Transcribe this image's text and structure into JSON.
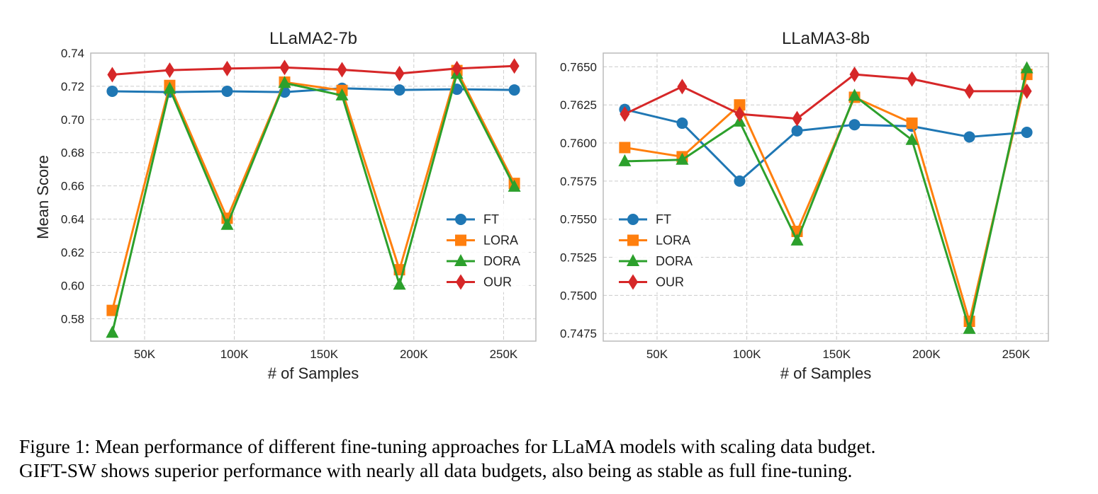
{
  "colors": {
    "FT": "#1f77b4",
    "LORA": "#ff7f0e",
    "DORA": "#2ca02c",
    "OUR": "#d62728",
    "grid": "#cccccc",
    "frame": "#bbbbbb"
  },
  "chart_data": [
    {
      "type": "line",
      "title": "LLaMA2-7b",
      "xlabel": "# of Samples",
      "ylabel": "Mean Score",
      "x": [
        32000,
        64000,
        96000,
        128000,
        160000,
        192000,
        224000,
        256000
      ],
      "xlim": [
        20000,
        268000
      ],
      "ylim": [
        0.5665,
        0.74
      ],
      "xticks": [
        50000,
        100000,
        150000,
        200000,
        250000
      ],
      "xtick_labels": [
        "50K",
        "100K",
        "150K",
        "200K",
        "250K"
      ],
      "yticks": [
        0.58,
        0.6,
        0.62,
        0.64,
        0.66,
        0.68,
        0.7,
        0.72,
        0.74
      ],
      "ytick_labels": [
        "0.58",
        "0.60",
        "0.62",
        "0.64",
        "0.66",
        "0.68",
        "0.70",
        "0.72",
        "0.74"
      ],
      "grid": true,
      "legend_position": "lower-right",
      "series": [
        {
          "name": "FT",
          "marker": "circle",
          "values": [
            0.717,
            0.7165,
            0.717,
            0.7165,
            0.7188,
            0.7178,
            0.7182,
            0.7178
          ]
        },
        {
          "name": "LORA",
          "marker": "square",
          "values": [
            0.585,
            0.7205,
            0.6405,
            0.7225,
            0.7175,
            0.6095,
            0.7295,
            0.6615
          ]
        },
        {
          "name": "DORA",
          "marker": "triangle",
          "values": [
            0.5715,
            0.7185,
            0.6365,
            0.722,
            0.7145,
            0.6005,
            0.7275,
            0.6595
          ]
        },
        {
          "name": "OUR",
          "marker": "diamond",
          "values": [
            0.727,
            0.7297,
            0.7307,
            0.7313,
            0.73,
            0.7277,
            0.7307,
            0.7322
          ]
        }
      ]
    },
    {
      "type": "line",
      "title": "LLaMA3-8b",
      "xlabel": "# of Samples",
      "ylabel": "",
      "x": [
        32000,
        64000,
        96000,
        128000,
        160000,
        192000,
        224000,
        256000
      ],
      "xlim": [
        20000,
        268000
      ],
      "ylim": [
        0.747,
        0.7659
      ],
      "xticks": [
        50000,
        100000,
        150000,
        200000,
        250000
      ],
      "xtick_labels": [
        "50K",
        "100K",
        "150K",
        "200K",
        "250K"
      ],
      "yticks": [
        0.7475,
        0.75,
        0.7525,
        0.755,
        0.7575,
        0.76,
        0.7625,
        0.765
      ],
      "ytick_labels": [
        "0.7475",
        "0.7500",
        "0.7525",
        "0.7550",
        "0.7575",
        "0.7600",
        "0.7625",
        "0.7650"
      ],
      "grid": true,
      "legend_position": "lower-left",
      "series": [
        {
          "name": "FT",
          "marker": "circle",
          "values": [
            0.7622,
            0.7613,
            0.7575,
            0.7608,
            0.7612,
            0.7611,
            0.7604,
            0.7607
          ]
        },
        {
          "name": "LORA",
          "marker": "square",
          "values": [
            0.7597,
            0.7591,
            0.7625,
            0.7542,
            0.763,
            0.7613,
            0.7483,
            0.7645
          ]
        },
        {
          "name": "DORA",
          "marker": "triangle",
          "values": [
            0.7588,
            0.7589,
            0.7614,
            0.7536,
            0.7631,
            0.7602,
            0.7478,
            0.7649
          ]
        },
        {
          "name": "OUR",
          "marker": "diamond",
          "values": [
            0.7619,
            0.7637,
            0.7619,
            0.7616,
            0.7645,
            0.7642,
            0.7634,
            0.7634
          ]
        }
      ]
    }
  ],
  "caption": {
    "line1": "Figure 1: Mean performance of different fine-tuning approaches for LLaMA models with scaling data budget.",
    "line2": "GIFT-SW shows superior performance with nearly all data budgets, also being as stable as full fine-tuning."
  }
}
